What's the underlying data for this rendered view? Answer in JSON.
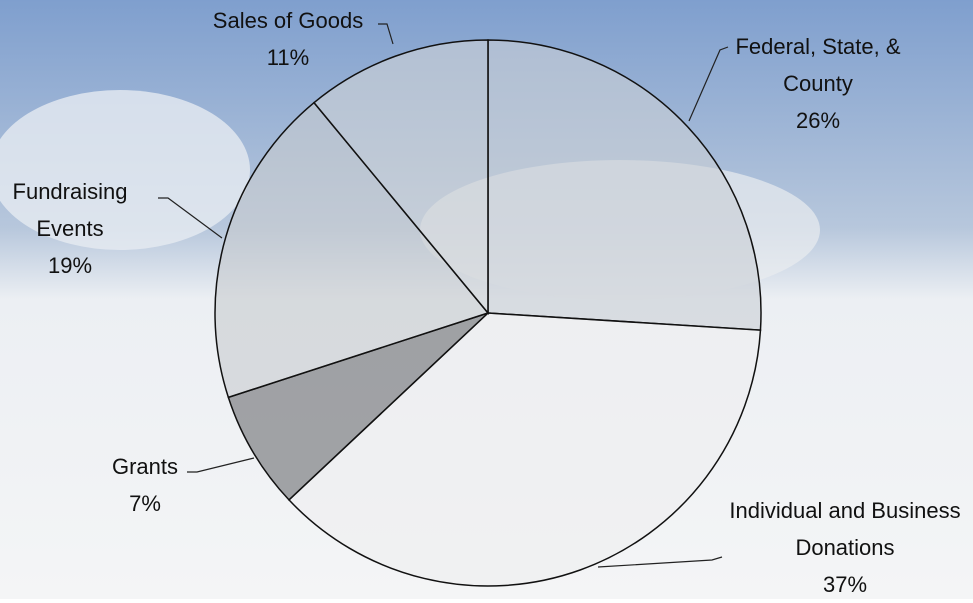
{
  "chart_data": {
    "type": "pie",
    "categories": [
      "Federal, State, & County",
      "Individual and Business Donations",
      "Grants",
      "Fundraising Events",
      "Sales of Goods"
    ],
    "values": [
      26,
      37,
      7,
      19,
      11
    ],
    "value_labels": [
      "26%",
      "37%",
      "7%",
      "19%",
      "11%"
    ],
    "colors": [
      "#c9ced6",
      "#eeeff0",
      "#6b6d70",
      "#c8cbcf",
      "#cfd2d6"
    ]
  }
}
